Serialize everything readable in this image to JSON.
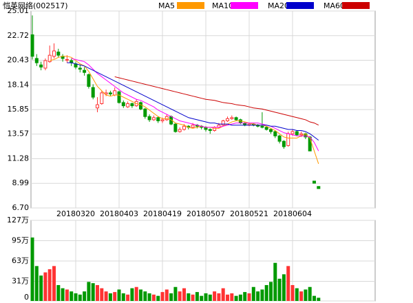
{
  "chart_data": {
    "type": "candlestick",
    "title": "恺英网络(002517)",
    "categories": [
      null,
      null,
      null,
      null,
      null,
      null,
      null,
      null,
      null,
      null,
      "20180320",
      null,
      null,
      null,
      null,
      null,
      null,
      null,
      null,
      null,
      "20180403",
      null,
      null,
      null,
      null,
      null,
      null,
      null,
      null,
      null,
      "20180419",
      null,
      null,
      null,
      null,
      null,
      null,
      null,
      null,
      null,
      "20180507",
      null,
      null,
      null,
      null,
      null,
      null,
      null,
      null,
      null,
      "20180521",
      null,
      null,
      null,
      null,
      null,
      null,
      null,
      null,
      null,
      "20180604",
      null,
      null,
      null,
      null,
      null,
      null
    ],
    "open": [
      22.8,
      20.6,
      20.0,
      19.7,
      20.3,
      20.8,
      21.2,
      20.8,
      20.5,
      20.4,
      20.1,
      19.7,
      19.5,
      19.1,
      17.9,
      16.0,
      16.4,
      17.3,
      17.4,
      17.2,
      17.5,
      16.5,
      16.1,
      16.4,
      16.2,
      16.5,
      15.9,
      15.2,
      14.9,
      15.1,
      14.8,
      14.9,
      15.2,
      14.5,
      13.8,
      14.0,
      14.3,
      14.2,
      14.4,
      14.3,
      14.2,
      14.0,
      13.9,
      14.2,
      14.4,
      14.8,
      15.0,
      15.1,
      14.9,
      14.6,
      14.4,
      14.5,
      14.4,
      14.3,
      14.2,
      14.0,
      13.8,
      13.4,
      12.9,
      12.5,
      13.6,
      13.8,
      13.5,
      13.6,
      13.3,
      9.2,
      8.7
    ],
    "high": [
      24.6,
      21.0,
      20.3,
      20.6,
      21.8,
      22.0,
      21.5,
      21.0,
      20.9,
      20.6,
      20.3,
      20.0,
      19.8,
      19.2,
      18.2,
      17.0,
      17.6,
      17.7,
      17.6,
      17.9,
      17.6,
      16.7,
      16.6,
      16.5,
      16.8,
      16.6,
      16.0,
      15.4,
      15.3,
      15.2,
      15.1,
      15.4,
      15.3,
      14.6,
      14.2,
      14.5,
      14.4,
      14.6,
      14.5,
      14.4,
      14.3,
      14.1,
      14.3,
      14.6,
      14.9,
      15.2,
      15.3,
      15.2,
      15.0,
      14.7,
      14.6,
      14.6,
      14.5,
      15.6,
      14.3,
      14.1,
      13.9,
      13.5,
      13.0,
      13.8,
      14.0,
      13.9,
      13.8,
      13.7,
      13.4,
      9.2,
      8.7
    ],
    "low": [
      20.5,
      19.9,
      19.5,
      19.5,
      20.2,
      20.6,
      20.7,
      20.3,
      20.2,
      19.9,
      19.6,
      19.3,
      19.0,
      17.8,
      16.8,
      15.6,
      16.3,
      17.1,
      17.1,
      17.1,
      16.4,
      16.0,
      16.0,
      16.0,
      16.1,
      15.8,
      15.0,
      14.7,
      14.8,
      14.6,
      14.6,
      14.8,
      14.4,
      13.7,
      13.7,
      13.9,
      14.0,
      14.1,
      14.1,
      14.0,
      13.8,
      13.6,
      13.8,
      14.1,
      14.3,
      14.7,
      14.9,
      14.8,
      14.5,
      14.3,
      14.3,
      14.3,
      14.2,
      14.1,
      13.9,
      13.6,
      13.2,
      12.7,
      12.2,
      12.4,
      13.4,
      13.4,
      13.3,
      13.1,
      12.0,
      9.0,
      8.5
    ],
    "close": [
      20.8,
      20.2,
      19.8,
      20.4,
      20.9,
      21.3,
      20.9,
      20.6,
      20.5,
      20.2,
      19.8,
      19.6,
      19.3,
      18.0,
      17.0,
      16.3,
      17.4,
      17.4,
      17.3,
      17.6,
      16.5,
      16.2,
      16.4,
      16.2,
      16.6,
      15.9,
      15.2,
      14.9,
      15.1,
      14.8,
      14.9,
      15.2,
      14.5,
      13.8,
      14.0,
      14.3,
      14.2,
      14.4,
      14.3,
      14.2,
      14.0,
      13.9,
      14.2,
      14.4,
      14.8,
      15.0,
      15.1,
      14.9,
      14.6,
      14.4,
      14.5,
      14.4,
      14.3,
      14.2,
      14.0,
      13.8,
      13.4,
      12.9,
      12.4,
      13.6,
      13.8,
      13.5,
      13.6,
      13.3,
      12.0,
      9.0,
      8.5
    ],
    "up_color": "#ff3333",
    "down_color": "#009900",
    "series": [
      {
        "name": "MA5",
        "color": "#ff9900",
        "values": [
          null,
          null,
          null,
          null,
          20.4,
          20.5,
          20.7,
          20.8,
          20.8,
          20.7,
          20.4,
          20.1,
          19.9,
          19.4,
          18.7,
          18.0,
          17.6,
          17.2,
          17.1,
          17.2,
          17.2,
          17.0,
          16.8,
          16.6,
          16.4,
          16.3,
          16.1,
          15.8,
          15.5,
          15.2,
          15.0,
          15.0,
          14.9,
          14.6,
          14.5,
          14.4,
          14.2,
          14.1,
          14.2,
          14.3,
          14.2,
          14.2,
          14.1,
          14.1,
          14.3,
          14.5,
          14.7,
          14.8,
          14.8,
          14.7,
          14.6,
          14.5,
          14.4,
          14.4,
          14.3,
          14.1,
          13.9,
          13.6,
          13.3,
          13.2,
          13.2,
          13.2,
          13.4,
          13.6,
          13.2,
          12.0,
          10.8
        ]
      },
      {
        "name": "MA10",
        "color": "#ff00ff",
        "values": [
          null,
          null,
          null,
          null,
          null,
          null,
          null,
          null,
          null,
          20.6,
          20.5,
          20.4,
          20.3,
          20.0,
          19.6,
          19.2,
          18.9,
          18.6,
          18.3,
          18.0,
          17.7,
          17.4,
          17.2,
          17.0,
          16.8,
          16.7,
          16.5,
          16.3,
          16.1,
          15.8,
          15.6,
          15.4,
          15.2,
          15.0,
          14.8,
          14.7,
          14.6,
          14.5,
          14.4,
          14.3,
          14.2,
          14.2,
          14.2,
          14.2,
          14.3,
          14.4,
          14.5,
          14.6,
          14.6,
          14.6,
          14.6,
          14.6,
          14.6,
          14.5,
          14.4,
          14.3,
          14.1,
          13.9,
          13.7,
          13.6,
          13.5,
          13.4,
          13.4,
          13.4,
          13.3,
          12.8,
          12.0
        ]
      },
      {
        "name": "MA20",
        "color": "#0000cc",
        "values": [
          null,
          null,
          null,
          null,
          null,
          null,
          null,
          null,
          20.2,
          20.2,
          20.1,
          20.0,
          19.9,
          19.7,
          19.5,
          19.3,
          19.1,
          18.9,
          18.7,
          18.5,
          18.3,
          18.1,
          17.9,
          17.7,
          17.5,
          17.3,
          17.1,
          16.9,
          16.7,
          16.5,
          16.3,
          16.1,
          15.9,
          15.7,
          15.5,
          15.3,
          15.1,
          15.0,
          14.9,
          14.8,
          14.7,
          14.6,
          14.6,
          14.5,
          14.5,
          14.5,
          14.4,
          14.4,
          14.4,
          14.4,
          14.4,
          14.4,
          14.4,
          14.4,
          14.4,
          14.3,
          14.3,
          14.2,
          14.1,
          14.0,
          14.0,
          13.9,
          13.9,
          13.8,
          13.6,
          13.3,
          13.0
        ]
      },
      {
        "name": "MA60",
        "color": "#cc0000",
        "values": [
          null,
          null,
          null,
          null,
          null,
          null,
          null,
          null,
          null,
          null,
          null,
          null,
          null,
          null,
          null,
          null,
          null,
          null,
          null,
          18.9,
          18.8,
          18.7,
          18.6,
          18.5,
          18.4,
          18.3,
          18.2,
          18.1,
          18.0,
          17.9,
          17.8,
          17.7,
          17.6,
          17.5,
          17.4,
          17.3,
          17.2,
          17.1,
          17.0,
          16.9,
          16.8,
          16.75,
          16.7,
          16.6,
          16.5,
          16.45,
          16.4,
          16.3,
          16.25,
          16.2,
          16.1,
          16.0,
          15.95,
          15.9,
          15.8,
          15.7,
          15.6,
          15.5,
          15.4,
          15.3,
          15.2,
          15.1,
          15.0,
          14.9,
          14.7,
          14.6,
          14.4
        ]
      }
    ],
    "ylim": [
      6.7,
      25.01
    ],
    "yticks": [
      {
        "value": 6.7,
        "label": "6.70"
      },
      8.99,
      11.28,
      13.57,
      15.85,
      18.14,
      20.43,
      22.72,
      25.01
    ],
    "grid": true,
    "volume": {
      "values": [
        100,
        55,
        40,
        45,
        50,
        55,
        25,
        20,
        18,
        15,
        12,
        10,
        15,
        30,
        28,
        25,
        20,
        15,
        12,
        14,
        18,
        12,
        10,
        20,
        22,
        18,
        15,
        12,
        10,
        8,
        14,
        18,
        12,
        22,
        15,
        20,
        12,
        10,
        14,
        8,
        12,
        10,
        15,
        12,
        20,
        10,
        12,
        8,
        10,
        14,
        12,
        22,
        15,
        18,
        25,
        30,
        60,
        35,
        42,
        55,
        25,
        20,
        15,
        18,
        22,
        8,
        5
      ],
      "ylim": [
        0,
        127
      ],
      "yticks": [
        0,
        {
          "value": 31,
          "label": "31万"
        },
        {
          "value": 63,
          "label": "63万"
        },
        {
          "value": 95,
          "label": "95万"
        },
        {
          "value": 127,
          "label": "127万"
        }
      ]
    }
  }
}
